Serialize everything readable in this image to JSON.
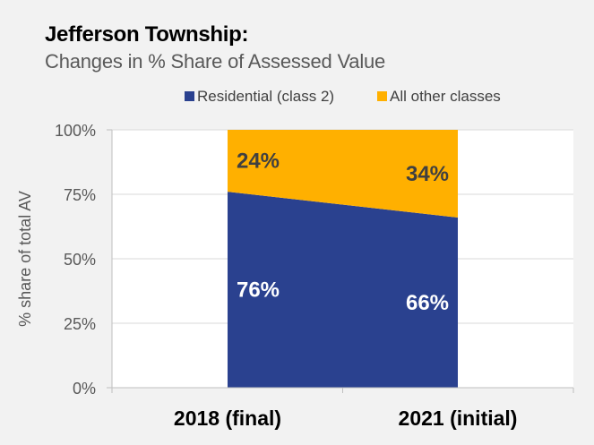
{
  "title": "Jefferson Township:",
  "subtitle": "Changes in % Share of Assessed Value",
  "chart_data": {
    "type": "area",
    "stacked": true,
    "categories": [
      "2018 (final)",
      "2021 (initial)"
    ],
    "series": [
      {
        "name": "Residential (class 2)",
        "values": [
          76,
          66
        ],
        "labels": [
          "76%",
          "66%"
        ],
        "color": "#2a418f",
        "label_color": "#ffffff"
      },
      {
        "name": "All other classes",
        "values": [
          24,
          34
        ],
        "labels": [
          "24%",
          "34%"
        ],
        "color": "#ffb000",
        "label_color": "#404040"
      }
    ],
    "ylabel": "% share of total AV",
    "ylim": [
      0,
      100
    ],
    "yticks": [
      0,
      25,
      50,
      75,
      100
    ],
    "ytick_labels": [
      "0%",
      "25%",
      "50%",
      "75%",
      "100%"
    ],
    "grid": true,
    "legend": "top"
  }
}
